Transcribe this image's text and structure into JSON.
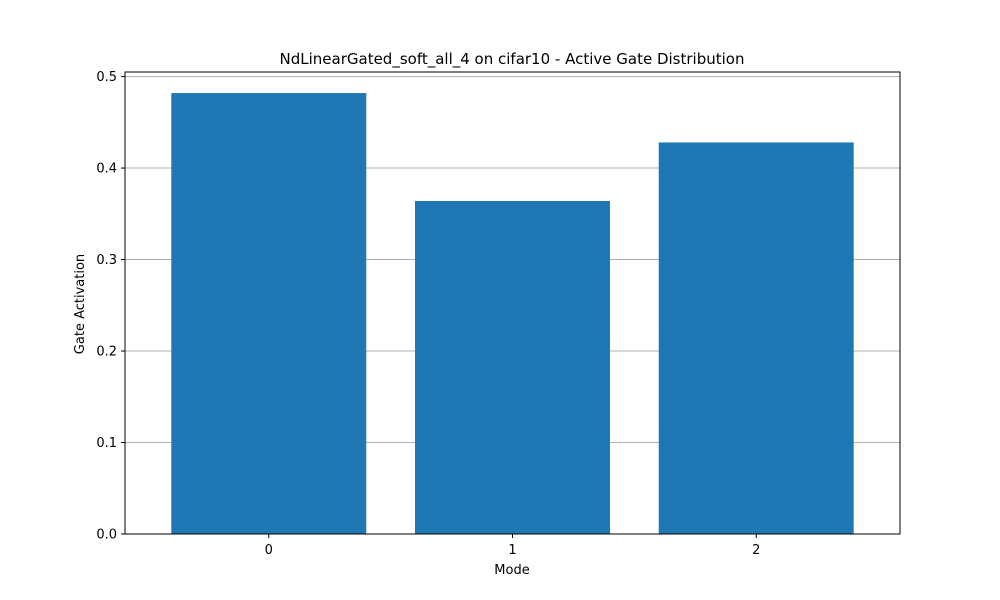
{
  "chart_data": {
    "type": "bar",
    "title": "NdLinearGated_soft_all_4 on cifar10 - Active Gate Distribution",
    "xlabel": "Mode",
    "ylabel": "Gate Activation",
    "categories": [
      "0",
      "1",
      "2"
    ],
    "values": [
      0.482,
      0.364,
      0.428
    ],
    "ylim": [
      0,
      0.505
    ],
    "yticks": [
      0.0,
      0.1,
      0.2,
      0.3,
      0.4,
      0.5
    ],
    "ytick_labels": [
      "0.0",
      "0.1",
      "0.2",
      "0.3",
      "0.4",
      "0.5"
    ],
    "grid": "y-axis only",
    "legend": "none",
    "bar_color": "#1f77b4",
    "grid_color": "#b0b0b0"
  }
}
